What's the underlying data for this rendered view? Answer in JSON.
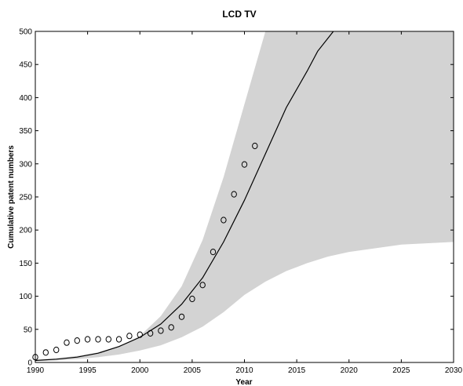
{
  "chart_data": {
    "type": "line",
    "title": "LCD TV",
    "xlabel": "Year",
    "ylabel": "Cumulative patent numbers",
    "xlim": [
      1990,
      2030
    ],
    "ylim": [
      0,
      500
    ],
    "xticks": [
      1990,
      1995,
      2000,
      2005,
      2010,
      2015,
      2020,
      2025,
      2030
    ],
    "yticks": [
      0,
      50,
      100,
      150,
      200,
      250,
      300,
      350,
      400,
      450,
      500
    ],
    "grid": false,
    "colors": {
      "band": "#d3d3d3",
      "line": "#000000",
      "marker": "#000000"
    },
    "band": {
      "x": [
        1990,
        1992,
        1994,
        1996,
        1998,
        2000,
        2002,
        2004,
        2006,
        2008,
        2010,
        2012,
        2014,
        2016,
        2018,
        2020,
        2025,
        2030
      ],
      "upper": [
        4,
        6,
        10,
        15,
        24,
        40,
        70,
        115,
        185,
        280,
        390,
        500,
        500,
        500,
        500,
        500,
        500,
        500
      ],
      "lower": [
        2,
        3,
        5,
        8,
        12,
        18,
        26,
        38,
        54,
        76,
        102,
        122,
        138,
        150,
        160,
        167,
        178,
        182
      ]
    },
    "fit_line": {
      "x": [
        1990,
        1992,
        1994,
        1996,
        1998,
        2000,
        2002,
        2004,
        2006,
        2008,
        2010,
        2012,
        2014,
        2016,
        2017,
        2018.5
      ],
      "y": [
        3,
        5,
        8,
        14,
        24,
        38,
        58,
        88,
        128,
        182,
        245,
        315,
        385,
        440,
        470,
        500
      ]
    },
    "observed": {
      "x": [
        1990,
        1991,
        1992,
        1993,
        1994,
        1995,
        1996,
        1997,
        1998,
        1999,
        2000,
        2001,
        2002,
        2003,
        2004,
        2005,
        2006,
        2007,
        2008,
        2009,
        2010,
        2011
      ],
      "y": [
        8,
        15,
        19,
        30,
        33,
        35,
        35,
        35,
        35,
        40,
        42,
        44,
        48,
        53,
        69,
        96,
        117,
        167,
        215,
        254,
        299,
        327
      ]
    }
  }
}
